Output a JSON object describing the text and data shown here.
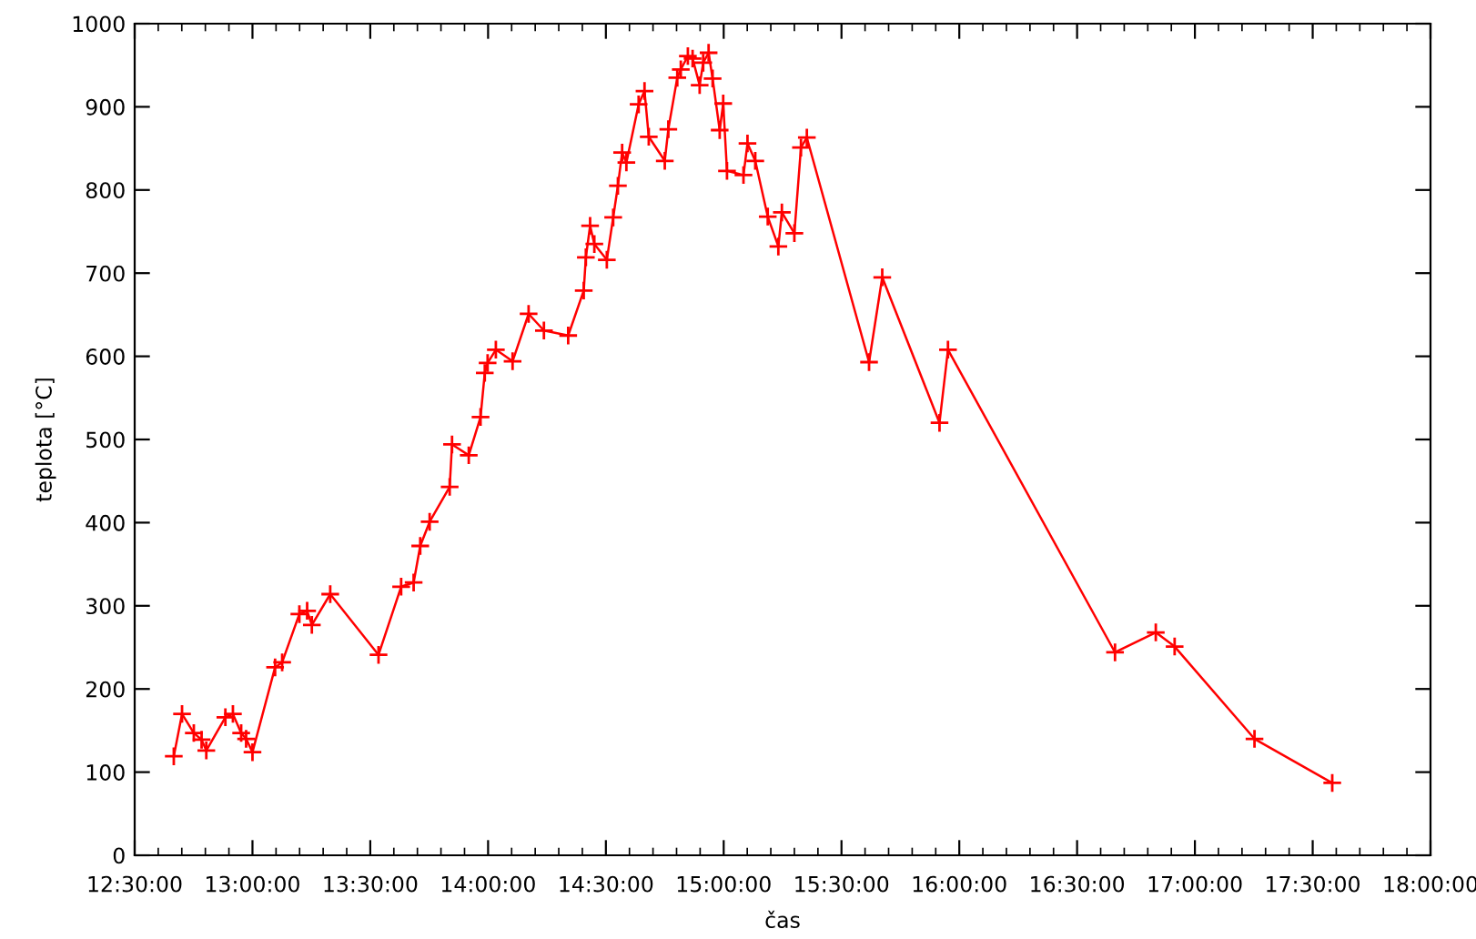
{
  "chart_data": {
    "type": "line",
    "xlabel": "čas",
    "ylabel": "teplota [°C]",
    "x": [
      12.666,
      12.701,
      12.751,
      12.784,
      12.804,
      12.885,
      12.917,
      12.952,
      12.973,
      13.0,
      13.096,
      13.126,
      13.199,
      13.232,
      13.252,
      13.33,
      13.535,
      13.631,
      13.684,
      13.712,
      13.752,
      13.837,
      13.847,
      13.918,
      13.968,
      13.986,
      13.998,
      14.033,
      14.104,
      14.172,
      14.237,
      14.34,
      14.406,
      14.415,
      14.433,
      14.451,
      14.504,
      14.531,
      14.551,
      14.569,
      14.587,
      14.639,
      14.664,
      14.682,
      14.75,
      14.765,
      14.803,
      14.818,
      14.848,
      14.868,
      14.898,
      14.913,
      14.936,
      14.953,
      14.983,
      14.998,
      15.014,
      15.084,
      15.101,
      15.134,
      15.187,
      15.232,
      15.247,
      15.3,
      15.328,
      15.353,
      15.617,
      15.673,
      15.916,
      15.952,
      16.661,
      16.834,
      16.914,
      17.253,
      17.583
    ],
    "series": [
      {
        "color": "#ff0000",
        "values": [
          119,
          170,
          147,
          139,
          126,
          166,
          170,
          147,
          140,
          124,
          226,
          232,
          290,
          294,
          277,
          314,
          241,
          323,
          328,
          372,
          401,
          443,
          494,
          481,
          527,
          580,
          592,
          608,
          594,
          651,
          631,
          625,
          679,
          719,
          757,
          735,
          716,
          767,
          805,
          845,
          833,
          903,
          919,
          864,
          835,
          873,
          935,
          945,
          961,
          958,
          926,
          953,
          965,
          934,
          872,
          904,
          823,
          818,
          856,
          835,
          768,
          732,
          773,
          748,
          851,
          863,
          593,
          695,
          520,
          608,
          244,
          268,
          251,
          140,
          87
        ]
      }
    ],
    "marker": "cross",
    "line_style": "solid",
    "grid": false,
    "legend": false,
    "xlim": [
      12.5,
      18.0
    ],
    "xticks": [
      {
        "value": 12.5,
        "label": "12:30:00"
      },
      {
        "value": 12.6,
        "label": null
      },
      {
        "value": 12.7,
        "label": null
      },
      {
        "value": 12.8,
        "label": null
      },
      {
        "value": 12.9,
        "label": null
      },
      {
        "value": 13.0,
        "label": "13:00:00"
      },
      {
        "value": 13.1,
        "label": null
      },
      {
        "value": 13.2,
        "label": null
      },
      {
        "value": 13.3,
        "label": null
      },
      {
        "value": 13.4,
        "label": null
      },
      {
        "value": 13.5,
        "label": "13:30:00"
      },
      {
        "value": 13.6,
        "label": null
      },
      {
        "value": 13.7,
        "label": null
      },
      {
        "value": 13.8,
        "label": null
      },
      {
        "value": 13.9,
        "label": null
      },
      {
        "value": 14.0,
        "label": "14:00:00"
      },
      {
        "value": 14.1,
        "label": null
      },
      {
        "value": 14.2,
        "label": null
      },
      {
        "value": 14.3,
        "label": null
      },
      {
        "value": 14.4,
        "label": null
      },
      {
        "value": 14.5,
        "label": "14:30:00"
      },
      {
        "value": 14.6,
        "label": null
      },
      {
        "value": 14.7,
        "label": null
      },
      {
        "value": 14.8,
        "label": null
      },
      {
        "value": 14.9,
        "label": null
      },
      {
        "value": 15.0,
        "label": "15:00:00"
      },
      {
        "value": 15.1,
        "label": null
      },
      {
        "value": 15.2,
        "label": null
      },
      {
        "value": 15.3,
        "label": null
      },
      {
        "value": 15.4,
        "label": null
      },
      {
        "value": 15.5,
        "label": "15:30:00"
      },
      {
        "value": 15.6,
        "label": null
      },
      {
        "value": 15.7,
        "label": null
      },
      {
        "value": 15.8,
        "label": null
      },
      {
        "value": 15.9,
        "label": null
      },
      {
        "value": 16.0,
        "label": "16:00:00"
      },
      {
        "value": 16.1,
        "label": null
      },
      {
        "value": 16.2,
        "label": null
      },
      {
        "value": 16.3,
        "label": null
      },
      {
        "value": 16.4,
        "label": null
      },
      {
        "value": 16.5,
        "label": "16:30:00"
      },
      {
        "value": 16.6,
        "label": null
      },
      {
        "value": 16.7,
        "label": null
      },
      {
        "value": 16.8,
        "label": null
      },
      {
        "value": 16.9,
        "label": null
      },
      {
        "value": 17.0,
        "label": "17:00:00"
      },
      {
        "value": 17.1,
        "label": null
      },
      {
        "value": 17.2,
        "label": null
      },
      {
        "value": 17.3,
        "label": null
      },
      {
        "value": 17.4,
        "label": null
      },
      {
        "value": 17.5,
        "label": "17:30:00"
      },
      {
        "value": 17.6,
        "label": null
      },
      {
        "value": 17.7,
        "label": null
      },
      {
        "value": 17.8,
        "label": null
      },
      {
        "value": 17.9,
        "label": null
      },
      {
        "value": 18.0,
        "label": "18:00:00"
      }
    ],
    "ylim": [
      0,
      1000
    ],
    "yticks": [
      0,
      100,
      200,
      300,
      400,
      500,
      600,
      700,
      800,
      900,
      1000
    ]
  }
}
